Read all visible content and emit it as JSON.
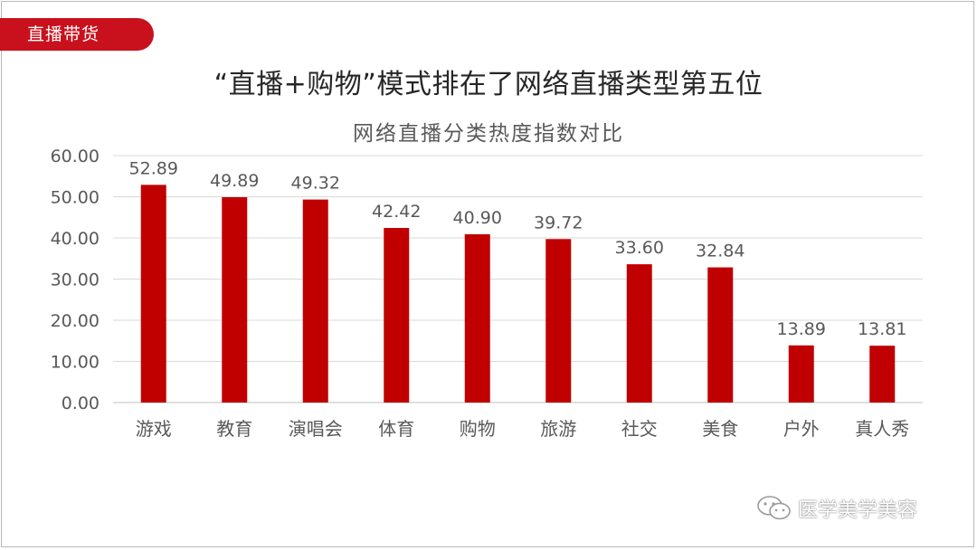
{
  "tag": {
    "label": "直播带货"
  },
  "headline": "“直播+购物”模式排在了网络直播类型第五位",
  "watermark": {
    "text": "医学美学美容",
    "icon": "wechat-icon"
  },
  "colors": {
    "bar": "#c00000",
    "accent": "#c9111d",
    "grid": "#d9d9d9",
    "axis_text": "#595959"
  },
  "chart_data": {
    "type": "bar",
    "title": "网络直播分类热度指数对比",
    "categories": [
      "游戏",
      "教育",
      "演唱会",
      "体育",
      "购物",
      "旅游",
      "社交",
      "美食",
      "户外",
      "真人秀"
    ],
    "values": [
      52.89,
      49.89,
      49.32,
      42.42,
      40.9,
      39.72,
      33.6,
      32.84,
      13.89,
      13.81
    ],
    "value_labels": [
      "52.89",
      "49.89",
      "49.32",
      "42.42",
      "40.90",
      "39.72",
      "33.60",
      "32.84",
      "13.89",
      "13.81"
    ],
    "ylim": [
      0,
      60
    ],
    "yticks": [
      "0.00",
      "10.00",
      "20.00",
      "30.00",
      "40.00",
      "50.00",
      "60.00"
    ],
    "xlabel": "",
    "ylabel": "",
    "grid": true,
    "legend": "none"
  }
}
